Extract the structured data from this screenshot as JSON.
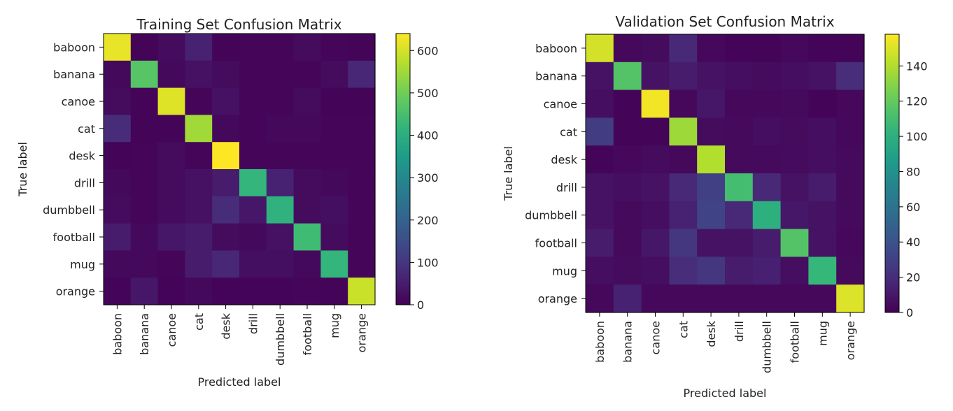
{
  "chart_data": [
    {
      "type": "heatmap",
      "title": "Training Set Confusion Matrix",
      "xlabel": "Predicted label",
      "ylabel": "True label",
      "x_categories": [
        "baboon",
        "banana",
        "canoe",
        "cat",
        "desk",
        "drill",
        "dumbbell",
        "football",
        "mug",
        "orange"
      ],
      "y_categories": [
        "baboon",
        "banana",
        "canoe",
        "cat",
        "desk",
        "drill",
        "dumbbell",
        "football",
        "mug",
        "orange"
      ],
      "values": [
        [
          620,
          5,
          20,
          60,
          5,
          10,
          10,
          20,
          10,
          5
        ],
        [
          15,
          470,
          15,
          30,
          20,
          10,
          10,
          10,
          20,
          70
        ],
        [
          20,
          5,
          610,
          10,
          30,
          10,
          10,
          20,
          5,
          5
        ],
        [
          80,
          5,
          5,
          550,
          15,
          10,
          15,
          15,
          10,
          10
        ],
        [
          5,
          10,
          20,
          10,
          640,
          10,
          10,
          10,
          10,
          10
        ],
        [
          15,
          10,
          20,
          30,
          50,
          420,
          60,
          20,
          15,
          10
        ],
        [
          20,
          10,
          20,
          30,
          80,
          40,
          410,
          20,
          25,
          10
        ],
        [
          50,
          15,
          40,
          50,
          20,
          15,
          30,
          440,
          20,
          10
        ],
        [
          15,
          15,
          10,
          50,
          70,
          25,
          25,
          15,
          420,
          10
        ],
        [
          5,
          40,
          5,
          15,
          5,
          5,
          5,
          10,
          5,
          590
        ]
      ],
      "colorbar": {
        "min": 0,
        "max": 640,
        "ticks": [
          0,
          100,
          200,
          300,
          400,
          500,
          600
        ]
      }
    },
    {
      "type": "heatmap",
      "title": "Validation Set Confusion Matrix",
      "xlabel": "Predicted label",
      "ylabel": "True label",
      "x_categories": [
        "baboon",
        "banana",
        "canoe",
        "cat",
        "desk",
        "drill",
        "dumbbell",
        "football",
        "mug",
        "orange"
      ],
      "y_categories": [
        "baboon",
        "banana",
        "canoe",
        "cat",
        "desk",
        "drill",
        "dumbbell",
        "football",
        "mug",
        "orange"
      ],
      "values": [
        [
          148,
          3,
          5,
          18,
          3,
          2,
          2,
          3,
          2,
          2
        ],
        [
          8,
          115,
          8,
          12,
          8,
          6,
          5,
          6,
          8,
          20
        ],
        [
          6,
          2,
          155,
          3,
          10,
          3,
          3,
          4,
          2,
          3
        ],
        [
          28,
          2,
          2,
          135,
          5,
          4,
          6,
          5,
          6,
          3
        ],
        [
          2,
          3,
          5,
          3,
          140,
          4,
          4,
          5,
          6,
          4
        ],
        [
          8,
          6,
          8,
          18,
          30,
          110,
          18,
          8,
          12,
          4
        ],
        [
          8,
          4,
          6,
          15,
          32,
          18,
          100,
          10,
          8,
          4
        ],
        [
          12,
          4,
          10,
          25,
          8,
          8,
          12,
          115,
          8,
          3
        ],
        [
          6,
          5,
          6,
          20,
          25,
          12,
          14,
          6,
          105,
          4
        ],
        [
          3,
          15,
          3,
          3,
          3,
          3,
          3,
          3,
          3,
          150
        ]
      ],
      "colorbar": {
        "min": 0,
        "max": 158,
        "ticks": [
          0,
          20,
          40,
          60,
          80,
          100,
          120,
          140
        ]
      }
    }
  ]
}
